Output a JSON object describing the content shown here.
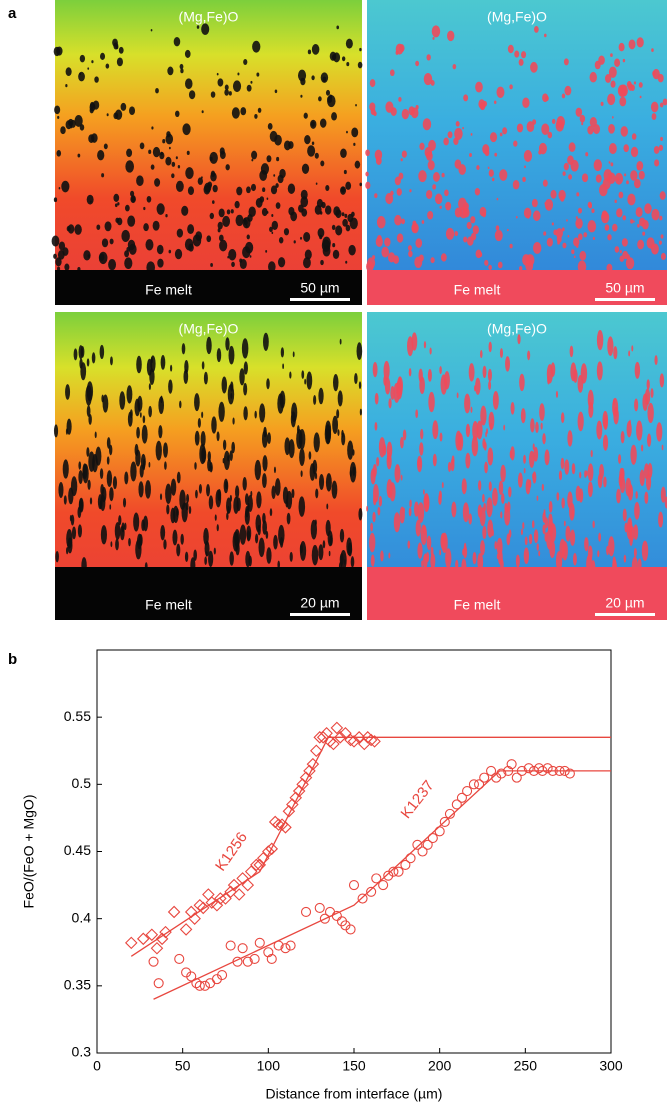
{
  "panel_a": {
    "label": "a",
    "images": [
      {
        "phase": "(Mg,Fe)O",
        "melt": "Fe melt",
        "scale": "50 µm"
      },
      {
        "phase": "(Mg,Fe)O",
        "melt": "Fe melt",
        "scale": "50 µm"
      },
      {
        "phase": "(Mg,Fe)O",
        "melt": "Fe melt",
        "scale": "20 µm"
      },
      {
        "phase": "(Mg,Fe)O",
        "melt": "Fe melt",
        "scale": "20 µm"
      }
    ]
  },
  "chart_data": {
    "type": "scatter",
    "panel_label": "b",
    "x_label": "Distance from interface (µm)",
    "y_label": "FeO/(FeO + MgO)",
    "xlim": [
      0,
      300
    ],
    "ylim": [
      0.3,
      0.6
    ],
    "xticks": [
      0,
      50,
      100,
      150,
      200,
      250,
      300
    ],
    "yticks": [
      0.3,
      0.35,
      0.4,
      0.45,
      0.5,
      0.55
    ],
    "color": "#e8473f",
    "series": [
      {
        "name": "K1256",
        "marker": "diamond",
        "x": [
          20,
          27,
          32,
          35,
          38,
          40,
          45,
          52,
          55,
          57,
          60,
          62,
          65,
          67,
          70,
          72,
          75,
          78,
          80,
          83,
          85,
          88,
          90,
          93,
          95,
          97,
          100,
          102,
          104,
          106,
          108,
          110,
          112,
          114,
          116,
          118,
          120,
          122,
          124,
          126,
          128,
          130,
          132,
          134,
          136,
          138,
          140,
          142,
          145,
          148,
          150,
          153,
          156,
          158,
          160,
          162
        ],
        "values": [
          0.382,
          0.385,
          0.388,
          0.378,
          0.385,
          0.39,
          0.405,
          0.392,
          0.405,
          0.4,
          0.41,
          0.408,
          0.418,
          0.412,
          0.41,
          0.415,
          0.415,
          0.42,
          0.425,
          0.418,
          0.43,
          0.425,
          0.435,
          0.44,
          0.44,
          0.445,
          0.45,
          0.452,
          0.472,
          0.47,
          0.47,
          0.468,
          0.48,
          0.485,
          0.49,
          0.495,
          0.5,
          0.505,
          0.51,
          0.515,
          0.525,
          0.535,
          0.535,
          0.538,
          0.532,
          0.53,
          0.542,
          0.535,
          0.538,
          0.533,
          0.532,
          0.535,
          0.53,
          0.535,
          0.533,
          0.532
        ]
      },
      {
        "name": "K1237",
        "marker": "circle",
        "x": [
          33,
          36,
          48,
          52,
          55,
          58,
          60,
          63,
          66,
          70,
          73,
          78,
          82,
          85,
          88,
          92,
          95,
          100,
          102,
          106,
          110,
          113,
          122,
          130,
          133,
          136,
          140,
          143,
          145,
          148,
          150,
          155,
          160,
          163,
          167,
          170,
          173,
          176,
          180,
          183,
          187,
          190,
          193,
          196,
          200,
          203,
          206,
          210,
          213,
          216,
          220,
          223,
          226,
          230,
          233,
          236,
          240,
          242,
          245,
          248,
          252,
          255,
          258,
          260,
          263,
          266,
          270,
          273,
          276
        ],
        "values": [
          0.368,
          0.352,
          0.37,
          0.36,
          0.357,
          0.352,
          0.35,
          0.35,
          0.352,
          0.355,
          0.358,
          0.38,
          0.368,
          0.378,
          0.368,
          0.37,
          0.382,
          0.375,
          0.37,
          0.38,
          0.378,
          0.38,
          0.405,
          0.408,
          0.4,
          0.405,
          0.402,
          0.398,
          0.395,
          0.392,
          0.425,
          0.415,
          0.42,
          0.43,
          0.425,
          0.432,
          0.435,
          0.435,
          0.44,
          0.445,
          0.455,
          0.45,
          0.455,
          0.46,
          0.465,
          0.472,
          0.478,
          0.485,
          0.49,
          0.495,
          0.5,
          0.5,
          0.505,
          0.51,
          0.505,
          0.508,
          0.51,
          0.515,
          0.505,
          0.51,
          0.512,
          0.51,
          0.512,
          0.51,
          0.512,
          0.51,
          0.51,
          0.51,
          0.508
        ]
      }
    ],
    "fit_lines": [
      {
        "x": [
          20,
          95,
          135,
          300
        ],
        "values": [
          0.372,
          0.435,
          0.535,
          0.535
        ]
      },
      {
        "x": [
          33,
          150,
          235,
          300
        ],
        "values": [
          0.34,
          0.41,
          0.51,
          0.51
        ]
      }
    ]
  }
}
